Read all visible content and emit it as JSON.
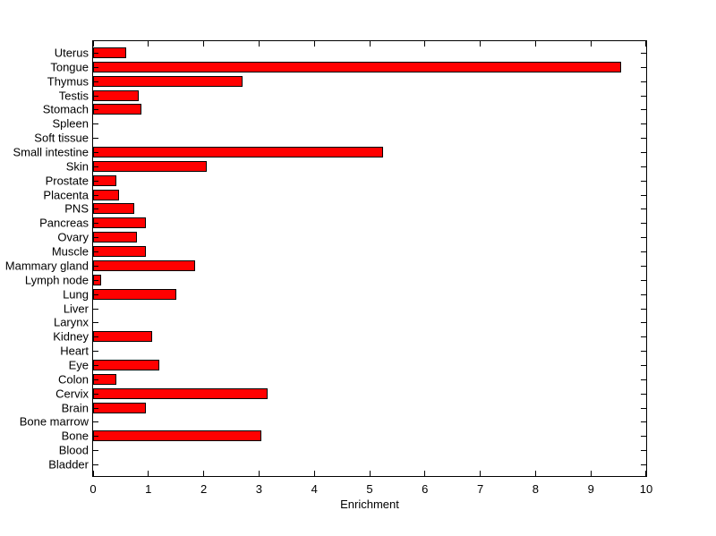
{
  "chart_data": {
    "type": "bar",
    "orientation": "horizontal",
    "title": "",
    "xlabel": "Enrichment",
    "ylabel": "",
    "xlim": [
      0,
      10
    ],
    "xticks": [
      0,
      1,
      2,
      3,
      4,
      5,
      6,
      7,
      8,
      9,
      10
    ],
    "grid": false,
    "legend": "none",
    "bar_color": "#ff0000",
    "bar_edge_color": "#000000",
    "axis_color": "#000000",
    "background_color": "#ffffff",
    "categories_top_to_bottom": [
      "Uterus",
      "Tongue",
      "Thymus",
      "Testis",
      "Stomach",
      "Spleen",
      "Soft tissue",
      "Small intestine",
      "Skin",
      "Prostate",
      "Placenta",
      "PNS",
      "Pancreas",
      "Ovary",
      "Muscle",
      "Mammary gland",
      "Lymph node",
      "Lung",
      "Liver",
      "Larynx",
      "Kidney",
      "Heart",
      "Eye",
      "Colon",
      "Cervix",
      "Brain",
      "Bone marrow",
      "Bone",
      "Blood",
      "Bladder"
    ],
    "values": [
      0.6,
      9.55,
      2.7,
      0.83,
      0.87,
      0,
      0,
      5.25,
      2.05,
      0.42,
      0.47,
      0.75,
      0.95,
      0.79,
      0.95,
      1.85,
      0.15,
      1.5,
      0,
      0,
      1.07,
      0,
      1.2,
      0.42,
      3.15,
      0.96,
      0,
      3.05,
      0,
      0
    ]
  }
}
